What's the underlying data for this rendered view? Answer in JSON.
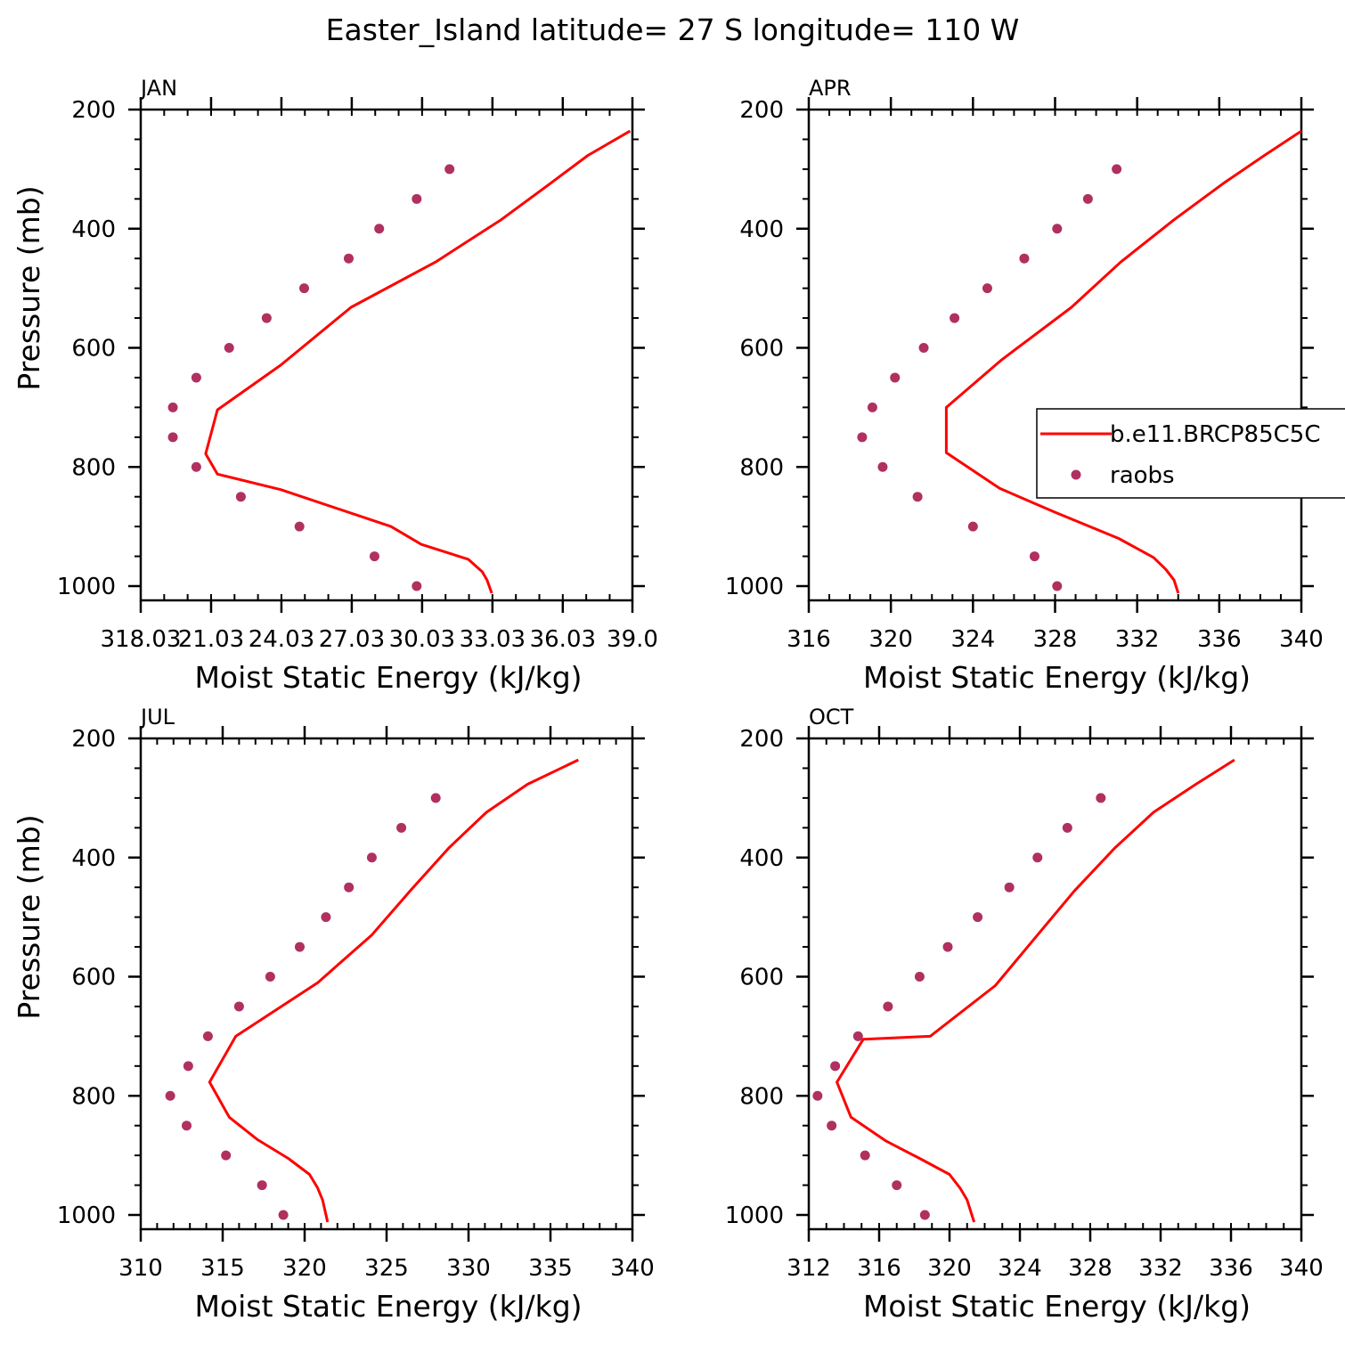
{
  "figure": {
    "title": "Easter_Island  latitude= 27 S longitude= 110 W"
  },
  "legend": {
    "model_label": "b.e11.BRCP85C5C",
    "obs_label": "raobs"
  },
  "colors": {
    "model_line": "#ff0000",
    "obs_marker": "#b03060",
    "axes": "#000000",
    "background": "#ffffff"
  },
  "chart_data": [
    {
      "type": "line",
      "panel_label": "JAN",
      "xlabel": "Moist Static Energy (kJ/kg)",
      "ylabel": "Pressure (mb)",
      "xlim": [
        318.03,
        339.0
      ],
      "ylim": [
        200,
        1000
      ],
      "y_inverted": true,
      "x_ticks": [
        318.03,
        321.03,
        324.03,
        327.03,
        330.03,
        333.03,
        336.03,
        339.0
      ],
      "x_tick_labels": [
        "318.03",
        "21.03",
        "24.03",
        "27.03",
        "30.03",
        "33.03",
        "36.03",
        "39.0"
      ],
      "x_minor_step": 1.0,
      "y_ticks": [
        200,
        400,
        600,
        800,
        1000
      ],
      "y_tick_labels": [
        "200",
        "400",
        "600",
        "800",
        "1000"
      ],
      "series": [
        {
          "name": "b.e11.BRCP85C5C",
          "kind": "line",
          "x": [
            338.9,
            337.1,
            335.5,
            333.4,
            330.6,
            327.0,
            324.0,
            321.3,
            320.8,
            321.3,
            324.0,
            328.7,
            330.0,
            332.0,
            332.6,
            332.8,
            333.0
          ],
          "y": [
            236,
            277,
            324,
            385,
            456,
            532,
            629,
            704,
            778,
            812,
            838,
            900,
            930,
            955,
            976,
            990,
            1012
          ]
        },
        {
          "name": "raobs",
          "kind": "scatter",
          "x": [
            331.2,
            329.8,
            328.2,
            326.9,
            325.0,
            323.4,
            321.8,
            320.4,
            319.4,
            319.4,
            320.4,
            322.3,
            324.8,
            328.0,
            329.8
          ],
          "y": [
            300,
            350,
            400,
            450,
            500,
            550,
            600,
            650,
            700,
            750,
            800,
            850,
            900,
            950,
            1000
          ]
        }
      ]
    },
    {
      "type": "line",
      "panel_label": "APR",
      "xlabel": "Moist Static Energy (kJ/kg)",
      "ylabel": "Pressure (mb)",
      "xlim": [
        316,
        340
      ],
      "ylim": [
        200,
        1000
      ],
      "y_inverted": true,
      "x_ticks": [
        316,
        320,
        324,
        328,
        332,
        336,
        340
      ],
      "x_tick_labels": [
        "316",
        "320",
        "324",
        "328",
        "332",
        "336",
        "340"
      ],
      "x_minor_step": 1,
      "y_ticks": [
        200,
        400,
        600,
        800,
        1000
      ],
      "y_tick_labels": [
        "200",
        "400",
        "600",
        "800",
        "1000"
      ],
      "series": [
        {
          "name": "b.e11.BRCP85C5C",
          "kind": "line",
          "x": [
            340.0,
            338.2,
            336.2,
            333.8,
            331.2,
            328.8,
            325.4,
            322.7,
            322.7,
            322.7,
            325.3,
            328.0,
            331.1,
            332.8,
            333.4,
            333.8,
            334.0
          ],
          "y": [
            236,
            277,
            324,
            385,
            456,
            532,
            620,
            700,
            745,
            776,
            836,
            876,
            920,
            952,
            972,
            990,
            1012
          ]
        },
        {
          "name": "raobs",
          "kind": "scatter",
          "x": [
            331.0,
            329.6,
            328.1,
            326.5,
            324.7,
            323.1,
            321.6,
            320.2,
            319.1,
            318.6,
            319.6,
            321.3,
            324.0,
            327.0,
            328.1
          ],
          "y": [
            300,
            350,
            400,
            450,
            500,
            550,
            600,
            650,
            700,
            750,
            800,
            850,
            900,
            950,
            1000
          ]
        }
      ]
    },
    {
      "type": "line",
      "panel_label": "JUL",
      "xlabel": "Moist Static Energy (kJ/kg)",
      "ylabel": "Pressure (mb)",
      "xlim": [
        310,
        340
      ],
      "ylim": [
        200,
        1000
      ],
      "y_inverted": true,
      "x_ticks": [
        310,
        315,
        320,
        325,
        330,
        335,
        340
      ],
      "x_tick_labels": [
        "310",
        "315",
        "320",
        "325",
        "330",
        "335",
        "340"
      ],
      "x_minor_step": 1,
      "y_ticks": [
        200,
        400,
        600,
        800,
        1000
      ],
      "y_tick_labels": [
        "200",
        "400",
        "600",
        "800",
        "1000"
      ],
      "series": [
        {
          "name": "b.e11.BRCP85C5C",
          "kind": "line",
          "x": [
            336.7,
            333.6,
            331.1,
            328.8,
            326.5,
            324.1,
            320.8,
            315.8,
            314.2,
            315.4,
            317.1,
            319.0,
            320.3,
            320.8,
            321.1,
            321.4
          ],
          "y": [
            236,
            277,
            324,
            384,
            454,
            530,
            610,
            700,
            777,
            836,
            873,
            905,
            932,
            955,
            975,
            1012
          ]
        },
        {
          "name": "raobs",
          "kind": "scatter",
          "x": [
            328.0,
            325.9,
            324.1,
            322.7,
            321.3,
            319.7,
            317.9,
            316.0,
            314.1,
            312.9,
            311.8,
            312.8,
            315.2,
            317.4,
            318.7
          ],
          "y": [
            300,
            350,
            400,
            450,
            500,
            550,
            600,
            650,
            700,
            750,
            800,
            850,
            900,
            950,
            1000
          ]
        }
      ]
    },
    {
      "type": "line",
      "panel_label": "OCT",
      "xlabel": "Moist Static Energy (kJ/kg)",
      "ylabel": "Pressure (mb)",
      "xlim": [
        312,
        340
      ],
      "ylim": [
        200,
        1000
      ],
      "y_inverted": true,
      "x_ticks": [
        312,
        316,
        320,
        324,
        328,
        332,
        336,
        340
      ],
      "x_tick_labels": [
        "312",
        "316",
        "320",
        "324",
        "328",
        "332",
        "336",
        "340"
      ],
      "x_minor_step": 1,
      "y_ticks": [
        200,
        400,
        600,
        800,
        1000
      ],
      "y_tick_labels": [
        "200",
        "400",
        "600",
        "800",
        "1000"
      ],
      "series": [
        {
          "name": "b.e11.BRCP85C5C",
          "kind": "line",
          "x": [
            336.2,
            334.0,
            331.6,
            329.4,
            327.1,
            325.0,
            322.6,
            318.9,
            315.1,
            313.6,
            314.4,
            316.4,
            318.3,
            320.0,
            320.6,
            321.0,
            321.4
          ],
          "y": [
            236,
            277,
            324,
            384,
            456,
            530,
            615,
            700,
            705,
            777,
            836,
            876,
            905,
            932,
            955,
            975,
            1012
          ]
        },
        {
          "name": "raobs",
          "kind": "scatter",
          "x": [
            328.6,
            326.7,
            325.0,
            323.4,
            321.6,
            319.9,
            318.3,
            316.5,
            314.8,
            313.5,
            312.5,
            313.3,
            315.2,
            317.0,
            318.6
          ],
          "y": [
            300,
            350,
            400,
            450,
            500,
            550,
            600,
            650,
            700,
            750,
            800,
            850,
            900,
            950,
            1000
          ]
        }
      ]
    }
  ]
}
